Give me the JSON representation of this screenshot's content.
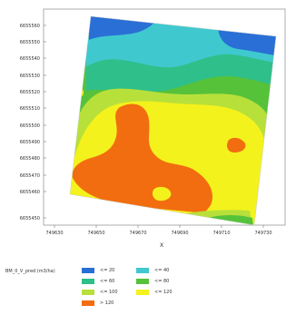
{
  "map": {
    "y_ticks": [
      "6655560",
      "6655550",
      "6655540",
      "6655530",
      "6655520",
      "6655510",
      "6655500",
      "6655490",
      "6655480",
      "6655470",
      "6655460",
      "6655450"
    ],
    "x_ticks": [
      "749630",
      "749650",
      "749670",
      "749690",
      "749710",
      "749730"
    ],
    "x_label": "X",
    "zone_colors": {
      "le20": "#2a6fd6",
      "le40": "#3fc9cf",
      "le60": "#2fbf8a",
      "le80": "#55c23a",
      "le100": "#b8e03a",
      "le120": "#f4f21c",
      "gt120": "#f26d10"
    }
  },
  "legend": {
    "title": "BM_0_V_pred (m3/ha)",
    "items": [
      {
        "label": "<= 20",
        "color": "#2a6fd6"
      },
      {
        "label": "<= 40",
        "color": "#3fc9cf"
      },
      {
        "label": "<= 60",
        "color": "#2fbf8a"
      },
      {
        "label": "<= 80",
        "color": "#55c23a"
      },
      {
        "label": "<= 100",
        "color": "#b8e03a"
      },
      {
        "label": "<= 120",
        "color": "#f4f21c"
      },
      {
        "label": "> 120",
        "color": "#f26d10"
      }
    ]
  }
}
